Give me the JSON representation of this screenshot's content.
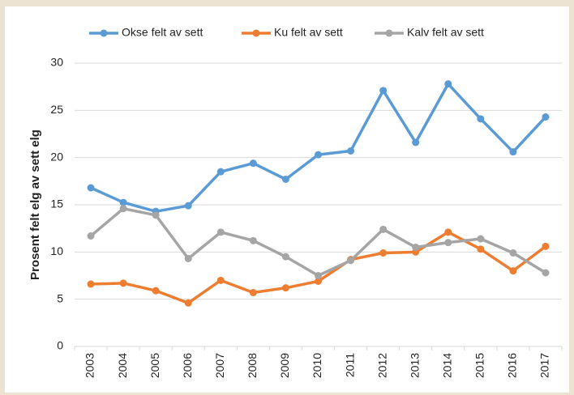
{
  "chart_data": {
    "type": "line",
    "ylabel": "Prosent felt elg av sett elg",
    "categories": [
      "2003",
      "2004",
      "2005",
      "2006",
      "2007",
      "2008",
      "2009",
      "2010",
      "2011",
      "2012",
      "2013",
      "2014",
      "2015",
      "2016",
      "2017"
    ],
    "series": [
      {
        "name": "Okse felt av sett",
        "color": "#5b9bd5",
        "values": [
          16.8,
          15.25,
          14.3,
          14.9,
          18.5,
          19.4,
          17.7,
          20.3,
          20.7,
          27.1,
          21.6,
          27.8,
          24.1,
          20.6,
          24.3
        ]
      },
      {
        "name": "Ku felt av sett",
        "color": "#ed7d31",
        "values": [
          6.6,
          6.7,
          5.9,
          4.6,
          7.0,
          5.7,
          6.2,
          6.9,
          9.2,
          9.9,
          10.0,
          12.1,
          10.3,
          8.0,
          10.6
        ]
      },
      {
        "name": "Kalv felt av sett",
        "color": "#a5a5a5",
        "values": [
          11.7,
          14.6,
          13.9,
          9.3,
          12.1,
          11.2,
          9.5,
          7.5,
          9.1,
          12.4,
          10.5,
          11.0,
          11.4,
          9.9,
          7.8
        ]
      }
    ],
    "ylim": [
      0,
      30
    ],
    "yticks": [
      0,
      5,
      10,
      15,
      20,
      25,
      30
    ],
    "grid": true,
    "legend": "top"
  }
}
